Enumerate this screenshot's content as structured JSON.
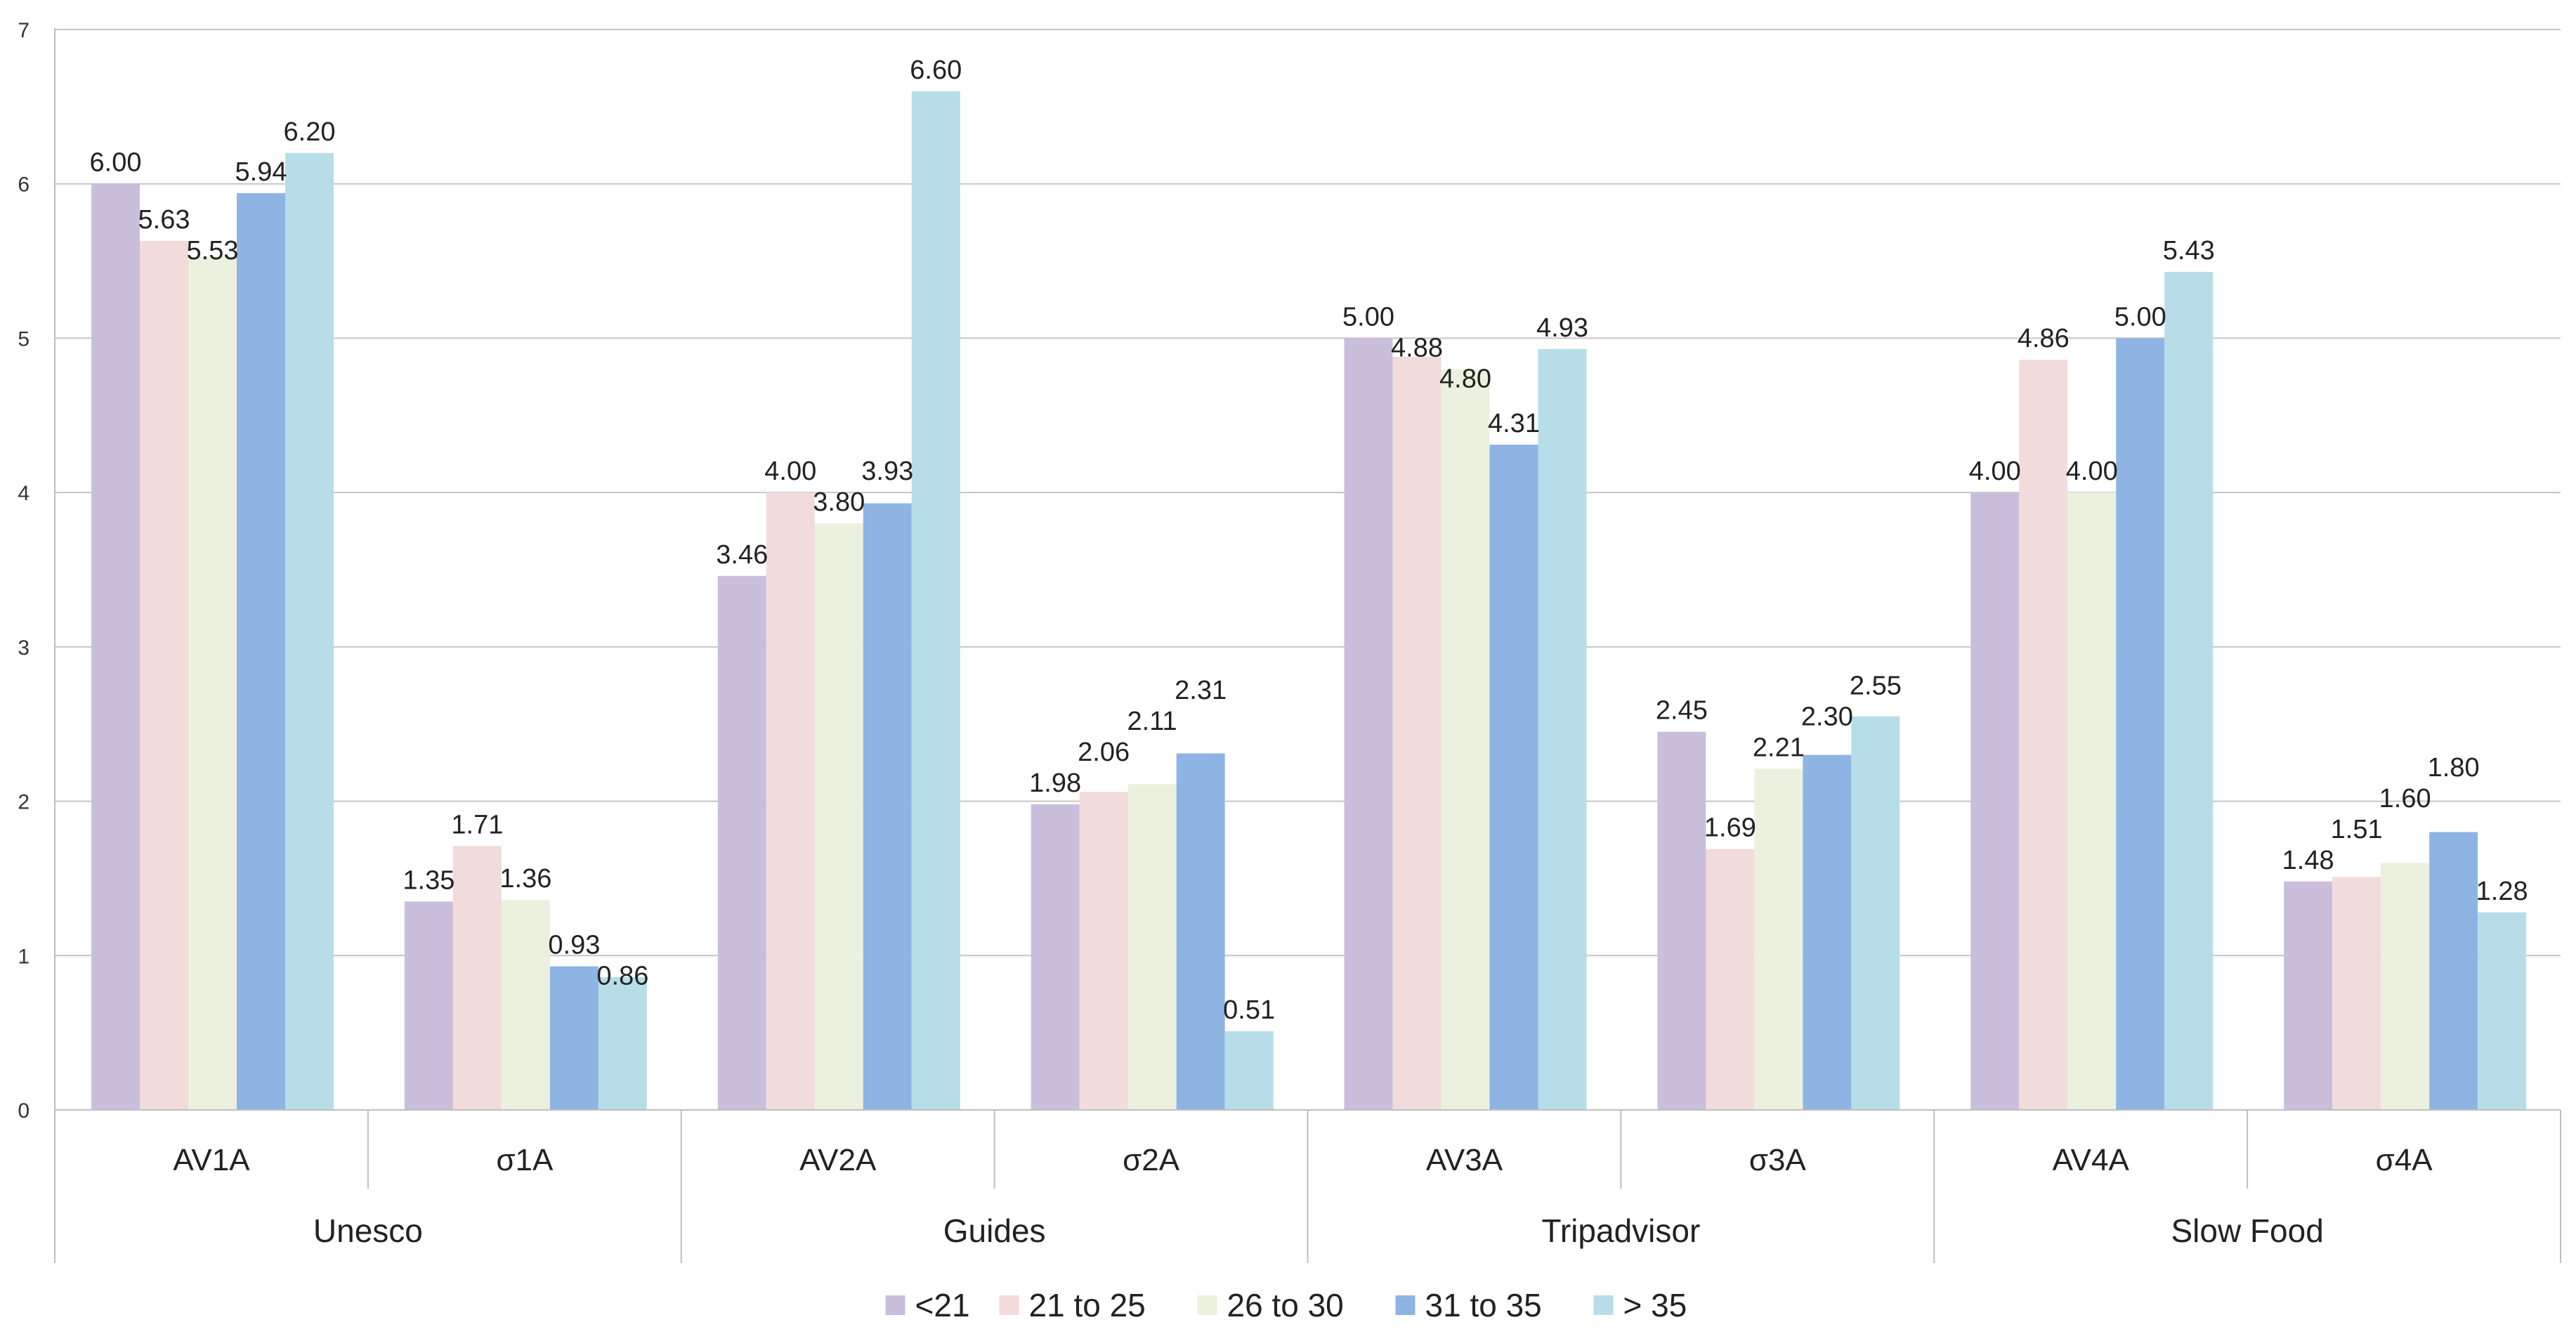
{
  "chart_data": {
    "type": "bar",
    "title": "",
    "xlabel": "",
    "ylabel": "",
    "ylim": [
      0,
      7
    ],
    "yticks": [
      "0",
      "1",
      "2",
      "3",
      "4",
      "5",
      "6",
      "7"
    ],
    "grid": true,
    "legend_position": "bottom",
    "categories": [
      "AV1A",
      "σ1A",
      "AV2A",
      "σ2A",
      "AV3A",
      "σ3A",
      "AV4A",
      "σ4A"
    ],
    "groups": [
      "Unesco",
      "Guides",
      "Tripadvisor",
      "Slow Food"
    ],
    "series": [
      {
        "name": "<21",
        "color": "#c9bfdc",
        "values": [
          6.0,
          1.35,
          3.46,
          1.98,
          5.0,
          2.45,
          4.0,
          1.48
        ],
        "labels": [
          "6.00",
          "1.35",
          "3.46",
          "1.98",
          "5.00",
          "2.45",
          "4.00",
          "1.48"
        ]
      },
      {
        "name": "21 to 25",
        "color": "#f2dbdb",
        "values": [
          5.63,
          1.71,
          4.0,
          2.06,
          4.88,
          1.69,
          4.86,
          1.51
        ],
        "labels": [
          "5.63",
          "1.71",
          "4.00",
          "2.06",
          "4.88",
          "1.69",
          "4.86",
          "1.51"
        ]
      },
      {
        "name": "26 to 30",
        "color": "#ebf1de",
        "values": [
          5.53,
          1.36,
          3.8,
          2.11,
          4.8,
          2.21,
          4.0,
          1.6
        ],
        "labels": [
          "5.53",
          "1.36",
          "3.80",
          "2.11",
          "4.80",
          "2.21",
          "4.00",
          "1.60"
        ]
      },
      {
        "name": "31 to 35",
        "color": "#8eb4e3",
        "values": [
          5.94,
          0.93,
          3.93,
          2.31,
          4.31,
          2.3,
          5.0,
          1.8
        ],
        "labels": [
          "5.94",
          "0.93",
          "3.93",
          "2.31",
          "4.31",
          "2.30",
          "5.00",
          "1.80"
        ]
      },
      {
        "name": "> 35",
        "color": "#b7dee8",
        "values": [
          6.2,
          0.86,
          6.6,
          0.51,
          4.93,
          2.55,
          5.43,
          1.28
        ],
        "labels": [
          "6.20",
          "0.86",
          "6.60",
          "0.51",
          "4.93",
          "2.55",
          "5.43",
          "1.28"
        ]
      }
    ]
  }
}
